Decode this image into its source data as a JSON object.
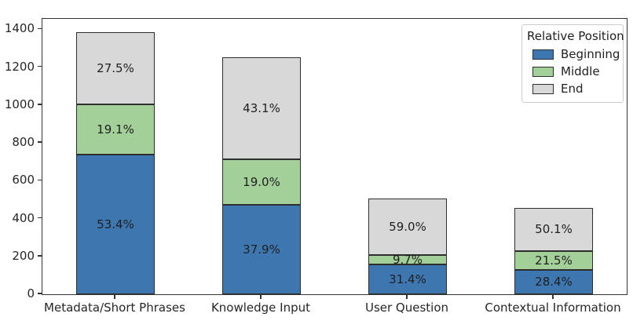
{
  "chart_data": {
    "type": "bar",
    "stacked": true,
    "title": "",
    "xlabel": "",
    "ylabel": "",
    "categories": [
      "Metadata/Short Phrases",
      "Knowledge Input",
      "User Question",
      "Contextual Information"
    ],
    "totals": [
      1385,
      1250,
      506,
      458
    ],
    "series": [
      {
        "name": "Beginning",
        "color": "#3e77b0",
        "percentages": [
          53.4,
          37.9,
          31.4,
          28.4
        ],
        "values": [
          740,
          474,
          159,
          130
        ]
      },
      {
        "name": "Middle",
        "color": "#a3cf99",
        "percentages": [
          19.1,
          19.0,
          9.7,
          21.5
        ],
        "values": [
          265,
          238,
          49,
          98
        ]
      },
      {
        "name": "End",
        "color": "#d8d8d8",
        "percentages": [
          27.5,
          43.1,
          59.0,
          50.1
        ],
        "values": [
          380,
          538,
          298,
          230
        ]
      }
    ],
    "segment_label_format": "percent",
    "y_ticks": [
      0,
      200,
      400,
      600,
      800,
      1000,
      1200,
      1400
    ],
    "ylim": [
      0,
      1455
    ],
    "grid": false,
    "legend": {
      "title": "Relative Position",
      "position": "upper right",
      "entries": [
        "Beginning",
        "Middle",
        "End"
      ]
    },
    "edge_color": "#2e2e2e",
    "background_color": "#ffffff"
  }
}
